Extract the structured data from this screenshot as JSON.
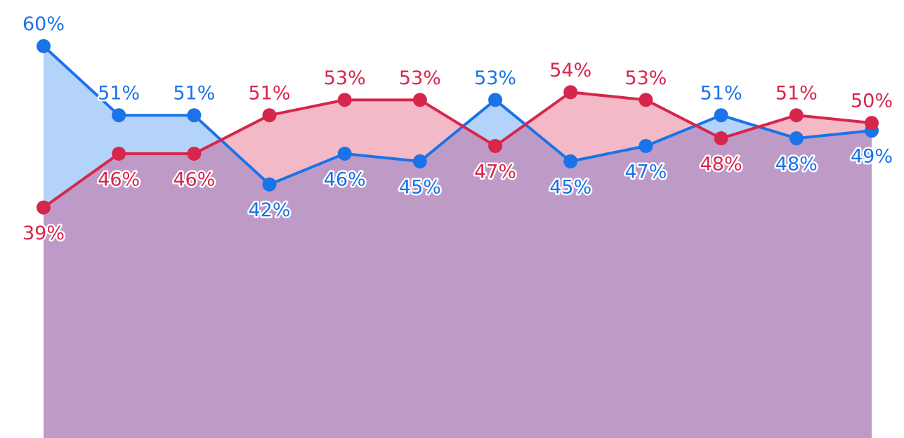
{
  "chart_data": {
    "type": "area",
    "ylim": [
      9,
      66
    ],
    "series": [
      {
        "color": "#1a73e8",
        "fill": "#b3d3fa",
        "values": [
          60,
          51,
          51,
          42,
          46,
          45,
          53,
          45,
          47,
          51,
          48,
          49
        ],
        "value_labels": [
          "60%",
          "51%",
          "51%",
          "42%",
          "46%",
          "45%",
          "53%",
          "45%",
          "47%",
          "51%",
          "48%",
          "49%"
        ]
      },
      {
        "color": "#d7264b",
        "fill": "#f4b9c6",
        "values": [
          39,
          46,
          46,
          51,
          53,
          53,
          47,
          54,
          53,
          48,
          51,
          50
        ],
        "value_labels": [
          "39%",
          "46%",
          "46%",
          "51%",
          "53%",
          "53%",
          "47%",
          "54%",
          "53%",
          "48%",
          "51%",
          "50%"
        ]
      }
    ],
    "overlap_color": "#be9bc7"
  }
}
